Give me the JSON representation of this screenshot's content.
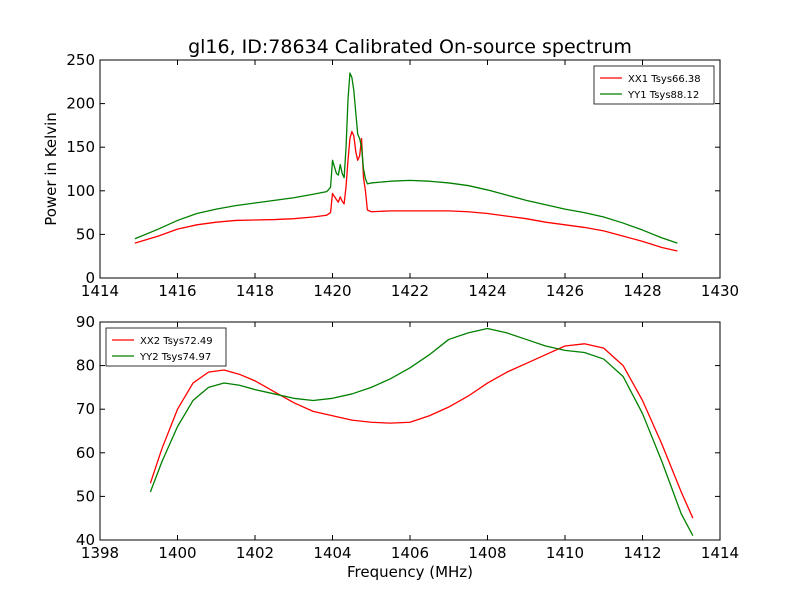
{
  "figure": {
    "title": "gl16, ID:78634 Calibrated On-source spectrum"
  },
  "chart_data": [
    {
      "type": "line",
      "title": "gl16, ID:78634 Calibrated On-source spectrum",
      "xlabel": "",
      "ylabel": "Power in Kelvin",
      "xlim": [
        1414,
        1430
      ],
      "ylim": [
        0,
        250
      ],
      "x_ticks": [
        1414,
        1416,
        1418,
        1420,
        1422,
        1424,
        1426,
        1428,
        1430
      ],
      "y_ticks": [
        0,
        50,
        100,
        150,
        200,
        250
      ],
      "grid": false,
      "legend_position": "top-right",
      "series": [
        {
          "name": "XX1 Tsys66.38",
          "color": "#ff0000",
          "x": [
            1414.9,
            1415.5,
            1416.0,
            1416.5,
            1417.0,
            1417.5,
            1418.0,
            1418.5,
            1419.0,
            1419.5,
            1419.85,
            1419.95,
            1420.0,
            1420.1,
            1420.15,
            1420.2,
            1420.25,
            1420.3,
            1420.35,
            1420.4,
            1420.45,
            1420.5,
            1420.55,
            1420.6,
            1420.65,
            1420.7,
            1420.75,
            1420.8,
            1420.85,
            1420.9,
            1421.0,
            1421.5,
            1422.0,
            1422.5,
            1423.0,
            1423.5,
            1424.0,
            1424.5,
            1425.0,
            1425.5,
            1426.0,
            1426.5,
            1427.0,
            1427.5,
            1428.0,
            1428.5,
            1428.9
          ],
          "values": [
            40,
            48,
            56,
            61,
            64,
            66,
            66.5,
            67,
            68,
            70,
            72,
            75,
            97,
            90,
            87,
            93,
            88,
            85,
            105,
            135,
            160,
            168,
            163,
            145,
            135,
            140,
            160,
            115,
            100,
            78,
            76,
            77,
            77,
            77,
            77,
            76,
            74,
            71,
            68,
            64,
            61,
            58,
            54,
            48,
            42,
            35,
            31
          ]
        },
        {
          "name": "YY1 Tsys88.12",
          "color": "#008000",
          "x": [
            1414.9,
            1415.5,
            1416.0,
            1416.5,
            1417.0,
            1417.5,
            1418.0,
            1418.5,
            1419.0,
            1419.5,
            1419.85,
            1419.95,
            1420.0,
            1420.1,
            1420.15,
            1420.2,
            1420.25,
            1420.3,
            1420.35,
            1420.4,
            1420.45,
            1420.5,
            1420.55,
            1420.6,
            1420.65,
            1420.7,
            1420.75,
            1420.8,
            1420.85,
            1420.9,
            1421.0,
            1421.5,
            1422.0,
            1422.5,
            1423.0,
            1423.5,
            1424.0,
            1424.5,
            1425.0,
            1425.5,
            1426.0,
            1426.5,
            1427.0,
            1427.5,
            1428.0,
            1428.5,
            1428.9
          ],
          "values": [
            45,
            56,
            66,
            74,
            79,
            83,
            86,
            89,
            92,
            96,
            99,
            104,
            135,
            120,
            118,
            130,
            120,
            115,
            150,
            205,
            235,
            230,
            215,
            190,
            165,
            160,
            150,
            125,
            114,
            108,
            109,
            111,
            112,
            111,
            109,
            106,
            101,
            95,
            89,
            84,
            79,
            75,
            70,
            63,
            55,
            46,
            40
          ]
        }
      ]
    },
    {
      "type": "line",
      "title": "",
      "xlabel": "Frequency (MHz)",
      "ylabel": "",
      "xlim": [
        1398,
        1414
      ],
      "ylim": [
        40,
        90
      ],
      "x_ticks": [
        1398,
        1400,
        1402,
        1404,
        1406,
        1408,
        1410,
        1412,
        1414
      ],
      "y_ticks": [
        40,
        50,
        60,
        70,
        80,
        90
      ],
      "grid": false,
      "legend_position": "top-left",
      "series": [
        {
          "name": "XX2 Tsys72.49",
          "color": "#ff0000",
          "x": [
            1399.3,
            1399.6,
            1400.0,
            1400.4,
            1400.8,
            1401.2,
            1401.6,
            1402.0,
            1402.5,
            1403.0,
            1403.5,
            1404.0,
            1404.5,
            1405.0,
            1405.5,
            1406.0,
            1406.5,
            1407.0,
            1407.5,
            1408.0,
            1408.5,
            1409.0,
            1409.5,
            1410.0,
            1410.5,
            1411.0,
            1411.5,
            1412.0,
            1412.5,
            1413.0,
            1413.3
          ],
          "values": [
            53,
            61,
            70,
            76,
            78.5,
            79,
            78,
            76.5,
            74,
            71.5,
            69.5,
            68.5,
            67.5,
            67,
            66.8,
            67,
            68.5,
            70.5,
            73,
            76,
            78.5,
            80.5,
            82.5,
            84.5,
            85,
            84,
            80,
            72,
            62,
            51,
            45
          ]
        },
        {
          "name": "YY2 Tsys74.97",
          "color": "#008000",
          "x": [
            1399.3,
            1399.6,
            1400.0,
            1400.4,
            1400.8,
            1401.2,
            1401.6,
            1402.0,
            1402.5,
            1403.0,
            1403.5,
            1404.0,
            1404.5,
            1405.0,
            1405.5,
            1406.0,
            1406.5,
            1407.0,
            1407.5,
            1408.0,
            1408.5,
            1409.0,
            1409.5,
            1410.0,
            1410.5,
            1411.0,
            1411.5,
            1412.0,
            1412.5,
            1413.0,
            1413.3
          ],
          "values": [
            51,
            58,
            66,
            72,
            75,
            76,
            75.5,
            74.5,
            73.5,
            72.5,
            72,
            72.5,
            73.5,
            75,
            77,
            79.5,
            82.5,
            86,
            87.5,
            88.5,
            87.5,
            86,
            84.5,
            83.5,
            83,
            81.5,
            77.5,
            69,
            58,
            46,
            41
          ]
        }
      ]
    }
  ]
}
